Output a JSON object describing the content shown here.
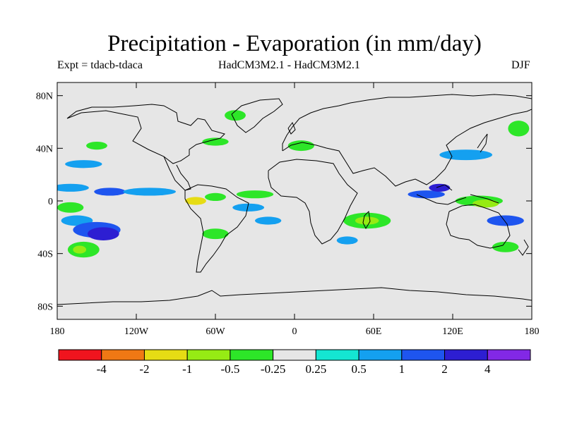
{
  "title": "Precipitation - Evaporation (in mm/day)",
  "subtitle_left": "Expt = tdacb-tdaca",
  "subtitle_center": "HadCM3M2.1 - HadCM3M2.1",
  "subtitle_right": "DJF",
  "map": {
    "background_color": "#e6e6e6",
    "lat_range": [
      -90,
      90
    ],
    "lon_range": [
      -180,
      180
    ],
    "lat_ticks": [
      {
        "value": 80,
        "label": "80N"
      },
      {
        "value": 40,
        "label": "40N"
      },
      {
        "value": 0,
        "label": "0"
      },
      {
        "value": -40,
        "label": "40S"
      },
      {
        "value": -80,
        "label": "80S"
      }
    ],
    "lon_ticks": [
      {
        "value": -180,
        "label": "180"
      },
      {
        "value": -120,
        "label": "120W"
      },
      {
        "value": -60,
        "label": "60W"
      },
      {
        "value": 0,
        "label": "0"
      },
      {
        "value": 60,
        "label": "60E"
      },
      {
        "value": 120,
        "label": "120E"
      },
      {
        "value": 180,
        "label": "180"
      }
    ]
  },
  "colorbar": {
    "colors": [
      "#f0141e",
      "#f07814",
      "#e6dc14",
      "#96eb14",
      "#2de628",
      "#e6e6e6",
      "#14e6d2",
      "#14a0f0",
      "#1e55ef",
      "#2d1ed2",
      "#8228e6"
    ],
    "labels": [
      "-4",
      "-2",
      "-1",
      "-0.5",
      "-0.25",
      "0.25",
      "0.5",
      "1",
      "2",
      "4"
    ]
  },
  "chart_data": {
    "type": "heatmap",
    "title": "Precipitation - Evaporation (in mm/day)",
    "experiment": "Expt = tdacb-tdaca",
    "model": "HadCM3M2.1 - HadCM3M2.1",
    "season": "DJF",
    "units": "mm/day",
    "levels": [
      -4,
      -2,
      -1,
      -0.5,
      -0.25,
      0.25,
      0.5,
      1,
      2,
      4
    ],
    "anomaly_regions": [
      {
        "lon": -170,
        "lat": 10,
        "rx": 14,
        "ry": 3,
        "level": 0.5
      },
      {
        "lon": -140,
        "lat": 7,
        "rx": 12,
        "ry": 3,
        "level": 1
      },
      {
        "lon": -110,
        "lat": 7,
        "rx": 20,
        "ry": 3,
        "level": 0.5
      },
      {
        "lon": -170,
        "lat": -5,
        "rx": 10,
        "ry": 4,
        "level": -0.5
      },
      {
        "lon": -165,
        "lat": -15,
        "rx": 12,
        "ry": 4,
        "level": 0.5
      },
      {
        "lon": -150,
        "lat": -22,
        "rx": 18,
        "ry": 6,
        "level": 1
      },
      {
        "lon": -145,
        "lat": -25,
        "rx": 12,
        "ry": 5,
        "level": 2
      },
      {
        "lon": -160,
        "lat": -37,
        "rx": 12,
        "ry": 6,
        "level": -0.5
      },
      {
        "lon": -163,
        "lat": -37,
        "rx": 5,
        "ry": 3,
        "level": -1
      },
      {
        "lon": -170,
        "lat": 45,
        "rx": 6,
        "ry": 6,
        "level": -0.25
      },
      {
        "lon": -150,
        "lat": 42,
        "rx": 8,
        "ry": 3,
        "level": -0.5
      },
      {
        "lon": -160,
        "lat": 28,
        "rx": 14,
        "ry": 3,
        "level": 0.5
      },
      {
        "lon": -75,
        "lat": 0,
        "rx": 8,
        "ry": 3,
        "level": -2
      },
      {
        "lon": -60,
        "lat": 3,
        "rx": 8,
        "ry": 3,
        "level": -0.5
      },
      {
        "lon": -30,
        "lat": 5,
        "rx": 14,
        "ry": 3,
        "level": -0.5
      },
      {
        "lon": -35,
        "lat": -5,
        "rx": 12,
        "ry": 3,
        "level": 0.5
      },
      {
        "lon": -60,
        "lat": -25,
        "rx": 10,
        "ry": 4,
        "level": -0.5
      },
      {
        "lon": -20,
        "lat": -15,
        "rx": 10,
        "ry": 3,
        "level": 0.5
      },
      {
        "lon": -60,
        "lat": 45,
        "rx": 10,
        "ry": 3,
        "level": -0.5
      },
      {
        "lon": -45,
        "lat": 65,
        "rx": 8,
        "ry": 4,
        "level": -0.5
      },
      {
        "lon": 55,
        "lat": -15,
        "rx": 18,
        "ry": 6,
        "level": -0.5
      },
      {
        "lon": 55,
        "lat": -15,
        "rx": 9,
        "ry": 3,
        "level": -1
      },
      {
        "lon": 40,
        "lat": -30,
        "rx": 8,
        "ry": 3,
        "level": 0.5
      },
      {
        "lon": 100,
        "lat": 5,
        "rx": 14,
        "ry": 3,
        "level": 1
      },
      {
        "lon": 110,
        "lat": 10,
        "rx": 8,
        "ry": 3,
        "level": 2
      },
      {
        "lon": 140,
        "lat": 0,
        "rx": 18,
        "ry": 4,
        "level": -0.5
      },
      {
        "lon": 145,
        "lat": -2,
        "rx": 10,
        "ry": 3,
        "level": -1
      },
      {
        "lon": 160,
        "lat": -15,
        "rx": 14,
        "ry": 4,
        "level": 1
      },
      {
        "lon": 130,
        "lat": 35,
        "rx": 20,
        "ry": 4,
        "level": 0.5
      },
      {
        "lon": 170,
        "lat": 55,
        "rx": 8,
        "ry": 6,
        "level": -0.5
      },
      {
        "lon": 5,
        "lat": 42,
        "rx": 10,
        "ry": 4,
        "level": -0.5
      },
      {
        "lon": 160,
        "lat": -35,
        "rx": 10,
        "ry": 4,
        "level": -0.5
      }
    ]
  }
}
